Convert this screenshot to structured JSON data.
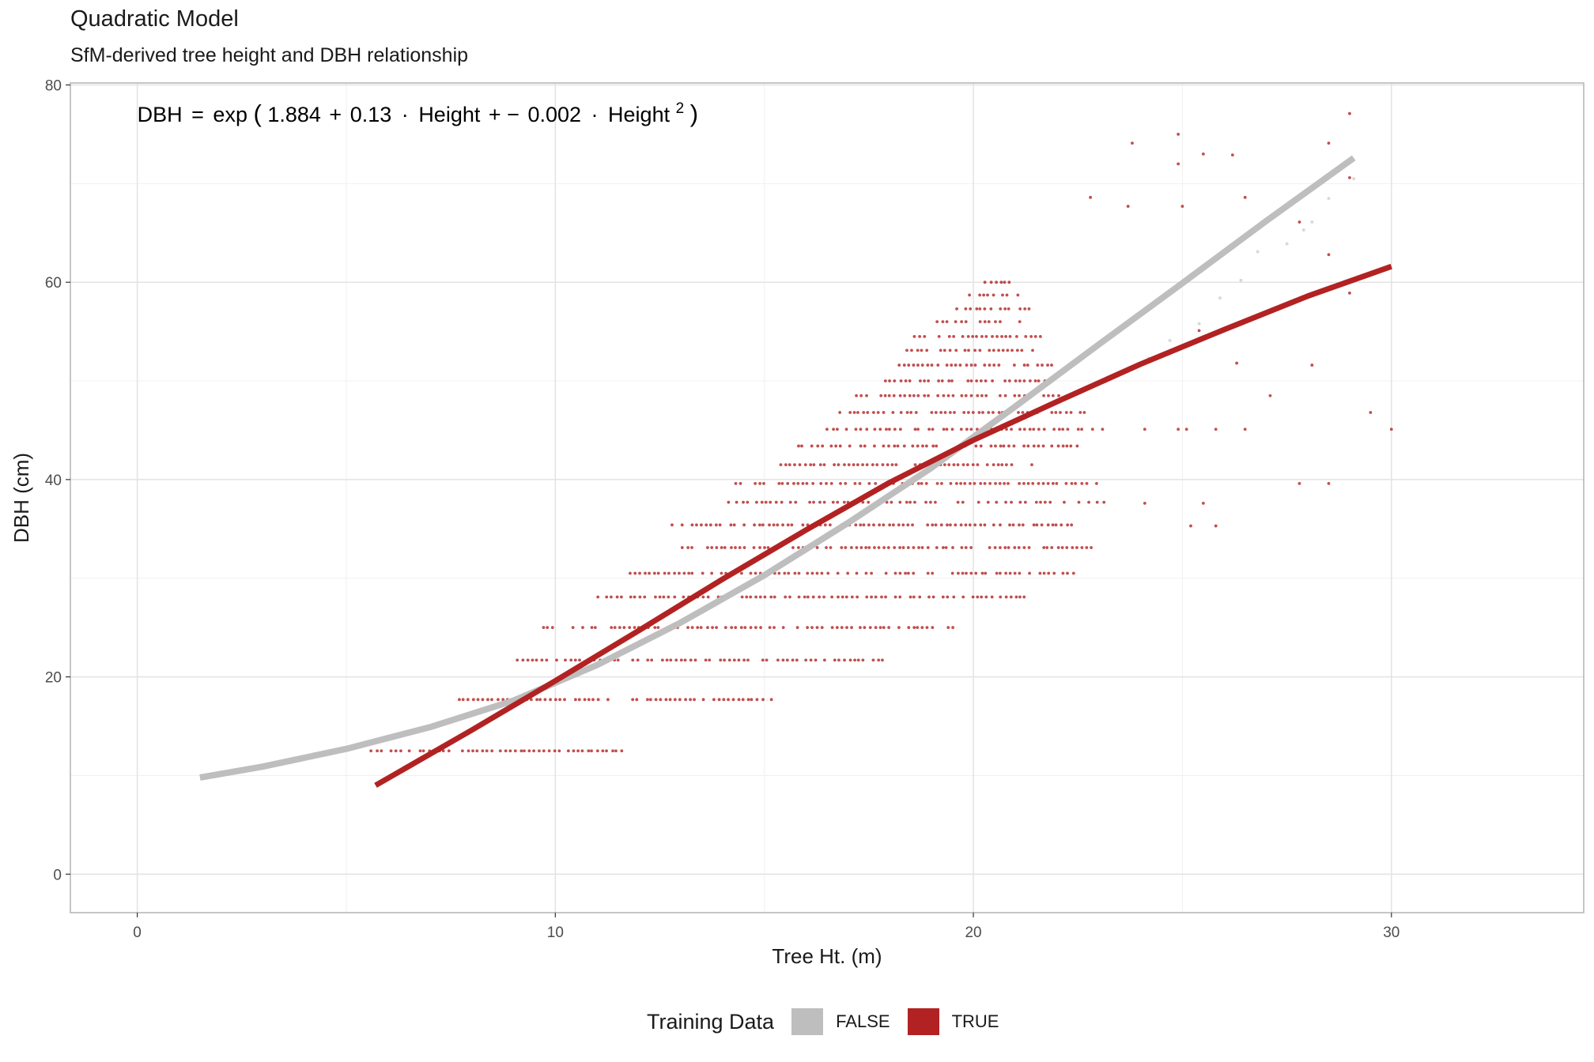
{
  "title": "Quadratic Model",
  "subtitle": "SfM-derived tree height and DBH relationship",
  "legend": {
    "title": "Training Data",
    "items": [
      {
        "label": "FALSE",
        "color": "#bebebe"
      },
      {
        "label": "TRUE",
        "color": "#b22222"
      }
    ]
  },
  "chart_data": {
    "type": "scatter",
    "xlabel": "Tree Ht. (m)",
    "ylabel": "DBH (cm)",
    "xlim": [
      -1.6,
      34.6
    ],
    "ylim": [
      -3.9,
      80.2
    ],
    "xticks": [
      0,
      10,
      20,
      30
    ],
    "yticks": [
      0,
      20,
      40,
      60,
      80
    ],
    "grid": true,
    "legend_position": "bottom",
    "annotation": {
      "lhs": "DBH",
      "eq": "=",
      "fn": "exp",
      "a": "1.884",
      "plus": "+",
      "b": "0.13",
      "dot": "·",
      "var": "Height",
      "plusminus": "+ −",
      "c": "0.002",
      "exp": "2",
      "x": 0,
      "y": 77
    },
    "series": [
      {
        "name": "FALSE",
        "color": "#bebebe",
        "kind": "fitted-curve",
        "points": [
          [
            1.5,
            9.8
          ],
          [
            3,
            10.9
          ],
          [
            5,
            12.7
          ],
          [
            7,
            14.9
          ],
          [
            9,
            17.6
          ],
          [
            11,
            21.2
          ],
          [
            13,
            25.5
          ],
          [
            15,
            30.3
          ],
          [
            17,
            35.6
          ],
          [
            19,
            41.2
          ],
          [
            21,
            47.4
          ],
          [
            23,
            53.7
          ],
          [
            25,
            59.9
          ],
          [
            27,
            66.2
          ],
          [
            29.1,
            72.6
          ]
        ],
        "extra_points": [
          [
            27.9,
            65.3
          ],
          [
            28.1,
            66.1
          ],
          [
            28.5,
            68.5
          ],
          [
            27.5,
            63.9
          ],
          [
            26.8,
            63.1
          ],
          [
            26.4,
            60.2
          ],
          [
            25.9,
            58.4
          ],
          [
            25.4,
            55.8
          ],
          [
            24.7,
            54.1
          ],
          [
            24.2,
            52.3
          ],
          [
            29.1,
            70.5
          ]
        ]
      },
      {
        "name": "TRUE",
        "color": "#b22222",
        "kind": "fitted-curve",
        "points": [
          [
            5.7,
            9.0
          ],
          [
            8,
            14.6
          ],
          [
            10,
            19.6
          ],
          [
            12,
            24.7
          ],
          [
            14,
            29.9
          ],
          [
            16,
            34.9
          ],
          [
            18,
            39.7
          ],
          [
            20,
            44.0
          ],
          [
            22,
            47.9
          ],
          [
            24,
            51.7
          ],
          [
            26,
            55.2
          ],
          [
            28,
            58.6
          ],
          [
            30,
            61.6
          ]
        ],
        "extra_points": [
          [
            23.8,
            74.1
          ],
          [
            24.9,
            75.0
          ],
          [
            25.5,
            73.0
          ],
          [
            26.2,
            72.9
          ],
          [
            24.9,
            72.0
          ],
          [
            29.0,
            77.1
          ],
          [
            28.5,
            74.1
          ],
          [
            22.8,
            68.6
          ],
          [
            23.7,
            67.7
          ],
          [
            25.0,
            67.7
          ],
          [
            26.5,
            68.6
          ],
          [
            29.0,
            70.6
          ],
          [
            28.5,
            62.8
          ],
          [
            29.0,
            58.9
          ],
          [
            27.8,
            66.1
          ],
          [
            25.4,
            55.1
          ],
          [
            27.1,
            48.5
          ],
          [
            28.1,
            51.6
          ],
          [
            29.5,
            46.8
          ],
          [
            30.0,
            45.1
          ],
          [
            26.3,
            51.8
          ],
          [
            25.1,
            45.1
          ],
          [
            25.8,
            45.1
          ],
          [
            24.1,
            45.1
          ],
          [
            24.9,
            45.1
          ],
          [
            26.5,
            45.1
          ],
          [
            27.8,
            39.6
          ],
          [
            28.5,
            39.6
          ],
          [
            25.5,
            37.6
          ],
          [
            25.2,
            35.3
          ],
          [
            25.8,
            35.3
          ],
          [
            24.1,
            37.6
          ]
        ]
      }
    ],
    "true_bands": [
      {
        "dbh": 12.5,
        "x": [
          5.6,
          11.6
        ]
      },
      {
        "dbh": 17.7,
        "x": [
          7.7,
          15.3
        ]
      },
      {
        "dbh": 21.7,
        "x": [
          9.1,
          17.9
        ]
      },
      {
        "dbh": 25.0,
        "x": [
          9.6,
          19.6
        ]
      },
      {
        "dbh": 28.1,
        "x": [
          11.0,
          21.5
        ]
      },
      {
        "dbh": 30.5,
        "x": [
          11.8,
          22.4
        ]
      },
      {
        "dbh": 33.1,
        "x": [
          12.7,
          23.0
        ]
      },
      {
        "dbh": 35.4,
        "x": [
          12.8,
          22.8
        ]
      },
      {
        "dbh": 37.7,
        "x": [
          13.9,
          23.1
        ]
      },
      {
        "dbh": 39.6,
        "x": [
          14.3,
          23.0
        ]
      },
      {
        "dbh": 41.5,
        "x": [
          15.4,
          21.6
        ]
      },
      {
        "dbh": 43.4,
        "x": [
          15.8,
          22.5
        ]
      },
      {
        "dbh": 45.1,
        "x": [
          16.4,
          23.2
        ]
      },
      {
        "dbh": 46.8,
        "x": [
          16.8,
          22.7
        ]
      },
      {
        "dbh": 48.5,
        "x": [
          17.2,
          22.2
        ]
      },
      {
        "dbh": 50.0,
        "x": [
          17.9,
          21.9
        ]
      },
      {
        "dbh": 51.6,
        "x": [
          18.1,
          22.0
        ]
      },
      {
        "dbh": 53.1,
        "x": [
          18.3,
          21.6
        ]
      },
      {
        "dbh": 54.5,
        "x": [
          18.6,
          21.6
        ]
      },
      {
        "dbh": 56.0,
        "x": [
          18.9,
          21.3
        ]
      },
      {
        "dbh": 57.3,
        "x": [
          19.6,
          21.4
        ]
      },
      {
        "dbh": 58.7,
        "x": [
          19.9,
          21.1
        ]
      },
      {
        "dbh": 60.0,
        "x": [
          20.3,
          20.9
        ]
      }
    ]
  }
}
